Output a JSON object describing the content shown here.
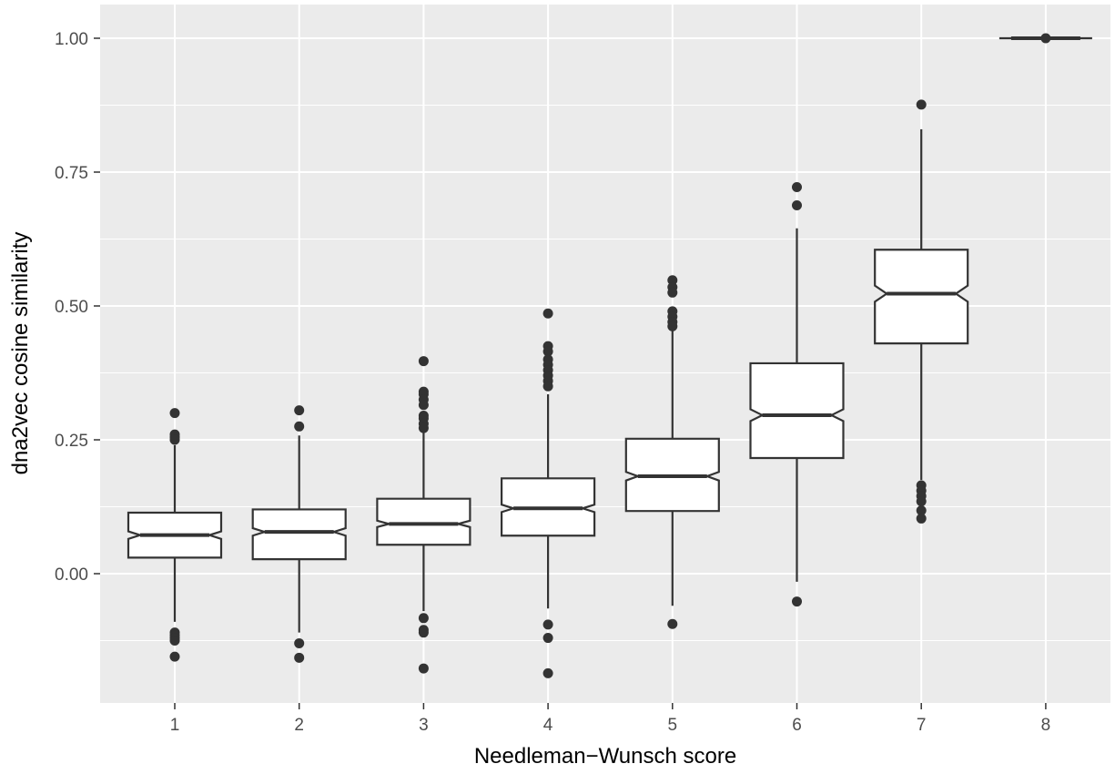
{
  "chart_data": {
    "type": "boxplot",
    "notched": true,
    "title": "",
    "xlabel": "Needleman−Wunsch score",
    "ylabel": "dna2vec cosine similarity",
    "categories": [
      "1",
      "2",
      "3",
      "4",
      "5",
      "6",
      "7",
      "8"
    ],
    "ylim": [
      -0.22,
      1.06
    ],
    "y_ticks": [
      {
        "value": 0.0,
        "label": "0.00"
      },
      {
        "value": 0.25,
        "label": "0.25"
      },
      {
        "value": 0.5,
        "label": "0.50"
      },
      {
        "value": 0.75,
        "label": "0.75"
      },
      {
        "value": 1.0,
        "label": "1.00"
      }
    ],
    "grid": true,
    "boxes": [
      {
        "category": "1",
        "whisker_low": -0.09,
        "q1": 0.03,
        "median": 0.072,
        "q3": 0.114,
        "whisker_high": 0.24,
        "notch": [
          0.065,
          0.079
        ],
        "outliers": [
          0.3,
          0.26,
          0.255,
          0.25,
          -0.11,
          -0.115,
          -0.12,
          -0.125,
          -0.155
        ]
      },
      {
        "category": "2",
        "whisker_low": -0.11,
        "q1": 0.027,
        "median": 0.078,
        "q3": 0.12,
        "whisker_high": 0.258,
        "notch": [
          0.071,
          0.085
        ],
        "outliers": [
          0.305,
          0.275,
          -0.13,
          -0.157
        ]
      },
      {
        "category": "3",
        "whisker_low": -0.07,
        "q1": 0.054,
        "median": 0.093,
        "q3": 0.14,
        "whisker_high": 0.265,
        "notch": [
          0.087,
          0.099
        ],
        "outliers": [
          0.397,
          0.34,
          0.335,
          0.325,
          0.315,
          0.295,
          0.29,
          0.28,
          0.272,
          -0.083,
          -0.105,
          -0.11,
          -0.177
        ]
      },
      {
        "category": "4",
        "whisker_low": -0.065,
        "q1": 0.071,
        "median": 0.122,
        "q3": 0.178,
        "whisker_high": 0.335,
        "notch": [
          0.115,
          0.129
        ],
        "outliers": [
          0.486,
          0.425,
          0.415,
          0.4,
          0.39,
          0.38,
          0.37,
          0.36,
          0.35,
          -0.095,
          -0.12,
          -0.186
        ]
      },
      {
        "category": "5",
        "whisker_low": -0.06,
        "q1": 0.117,
        "median": 0.182,
        "q3": 0.252,
        "whisker_high": 0.455,
        "notch": [
          0.174,
          0.19
        ],
        "outliers": [
          0.548,
          0.535,
          0.525,
          0.49,
          0.48,
          0.47,
          0.462,
          -0.094
        ]
      },
      {
        "category": "6",
        "whisker_low": -0.015,
        "q1": 0.216,
        "median": 0.296,
        "q3": 0.393,
        "whisker_high": 0.645,
        "notch": [
          0.285,
          0.307
        ],
        "outliers": [
          0.722,
          0.688,
          -0.052
        ]
      },
      {
        "category": "7",
        "whisker_low": 0.175,
        "q1": 0.43,
        "median": 0.523,
        "q3": 0.605,
        "whisker_high": 0.83,
        "notch": [
          0.508,
          0.538
        ],
        "outliers": [
          0.876,
          0.165,
          0.155,
          0.145,
          0.135,
          0.118,
          0.103
        ]
      },
      {
        "category": "8",
        "whisker_low": 1.0,
        "q1": 1.0,
        "median": 1.0,
        "q3": 1.0,
        "whisker_high": 1.0,
        "notch": [
          1.0,
          1.0
        ],
        "outliers": [
          1.0
        ]
      }
    ]
  }
}
